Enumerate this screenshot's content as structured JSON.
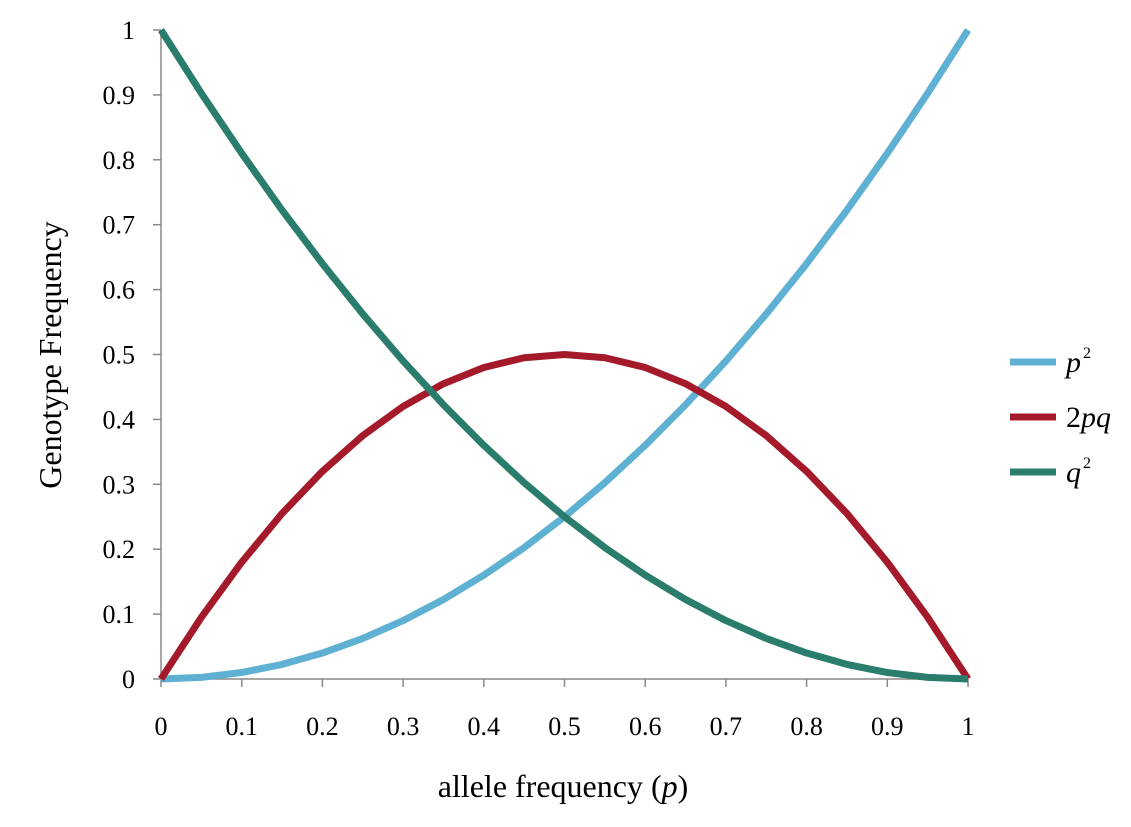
{
  "chart_data": {
    "type": "line",
    "xlabel_main": "allele frequency (",
    "xlabel_var": "p",
    "xlabel_close": ")",
    "ylabel": "Genotype Frequency",
    "xlim": [
      0,
      1
    ],
    "ylim": [
      0,
      1
    ],
    "grid": false,
    "legend_position": "right",
    "x_ticks": [
      "0",
      "0.1",
      "0.2",
      "0.3",
      "0.4",
      "0.5",
      "0.6",
      "0.7",
      "0.8",
      "0.9",
      "1"
    ],
    "y_ticks": [
      "0",
      "0.1",
      "0.2",
      "0.3",
      "0.4",
      "0.5",
      "0.6",
      "0.7",
      "0.8",
      "0.9",
      "1"
    ],
    "x": [
      0,
      0.05,
      0.1,
      0.15,
      0.2,
      0.25,
      0.3,
      0.35,
      0.4,
      0.45,
      0.5,
      0.55,
      0.6,
      0.65,
      0.7,
      0.75,
      0.8,
      0.85,
      0.9,
      0.95,
      1
    ],
    "series": [
      {
        "key": "p2",
        "legend_base": "p",
        "legend_sup": "2",
        "color": "#5fb1d3",
        "values": [
          0,
          0.0025,
          0.01,
          0.0225,
          0.04,
          0.0625,
          0.09,
          0.1225,
          0.16,
          0.2025,
          0.25,
          0.3025,
          0.36,
          0.4225,
          0.49,
          0.5625,
          0.64,
          0.7225,
          0.81,
          0.9025,
          1
        ]
      },
      {
        "key": "2pq",
        "legend_base": "2pq",
        "legend_sup": "",
        "color": "#a51a2b",
        "values": [
          0,
          0.095,
          0.18,
          0.255,
          0.32,
          0.375,
          0.42,
          0.455,
          0.48,
          0.495,
          0.5,
          0.495,
          0.48,
          0.455,
          0.42,
          0.375,
          0.32,
          0.255,
          0.18,
          0.095,
          0
        ]
      },
      {
        "key": "q2",
        "legend_base": "q",
        "legend_sup": "2",
        "color": "#2a7c6c",
        "values": [
          1,
          0.9025,
          0.81,
          0.7225,
          0.64,
          0.5625,
          0.49,
          0.4225,
          0.36,
          0.3025,
          0.25,
          0.2025,
          0.16,
          0.1225,
          0.09,
          0.0625,
          0.04,
          0.0225,
          0.01,
          0.0025,
          0
        ]
      }
    ]
  }
}
